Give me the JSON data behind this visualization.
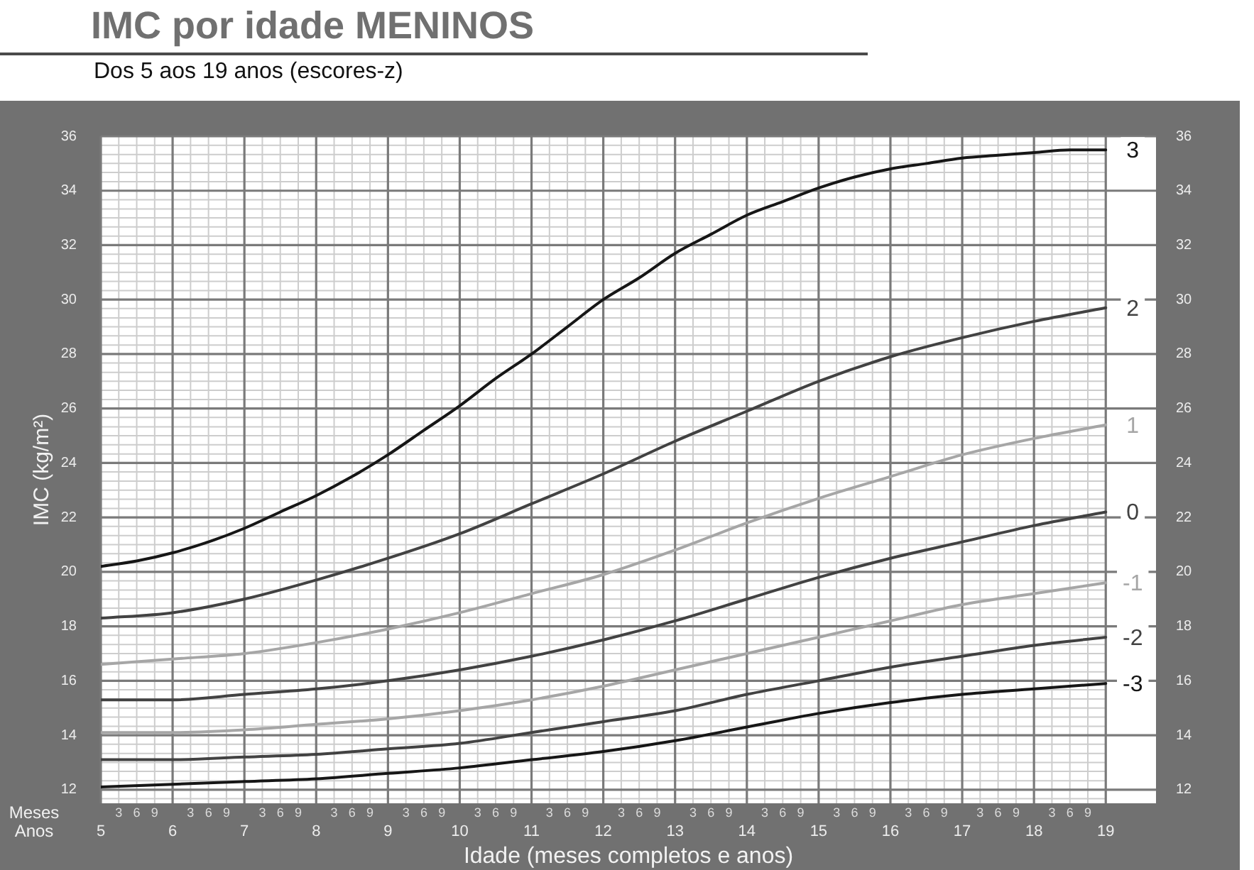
{
  "chart_data": {
    "type": "line",
    "title": "IMC por idade MENINOS",
    "subtitle": "Dos 5 aos 19 anos (escores-z)",
    "xlabel": "Idade (meses completos e anos)",
    "ylabel": "IMC (kg/m²)",
    "annotations": [
      "Meses",
      "Anos",
      "3",
      "6",
      "9",
      "3",
      "6",
      "9",
      "3",
      "6",
      "9",
      "3",
      "6",
      "9",
      "3",
      "6",
      "9",
      "3",
      "6",
      "9",
      "3",
      "6",
      "9",
      "3",
      "6",
      "9",
      "3",
      "6",
      "9",
      "3",
      "6",
      "9",
      "3",
      "6",
      "9",
      "3",
      "6",
      "9",
      "3",
      "6",
      "9",
      "3",
      "6",
      "9"
    ],
    "x": [
      5,
      6,
      7,
      8,
      9,
      10,
      11,
      12,
      13,
      14,
      15,
      16,
      17,
      18,
      19
    ],
    "series": [
      {
        "name": "3",
        "color": "#161616",
        "x": [
          5,
          5.5,
          6,
          6.5,
          7,
          7.5,
          8,
          8.5,
          9,
          9.5,
          10,
          10.5,
          11,
          11.5,
          12,
          12.5,
          13,
          13.5,
          14,
          14.5,
          15,
          15.5,
          16,
          16.5,
          17,
          17.5,
          18,
          18.5,
          19
        ],
        "values": [
          20.2,
          20.4,
          20.7,
          21.1,
          21.6,
          22.2,
          22.8,
          23.5,
          24.3,
          25.2,
          26.1,
          27.1,
          28.0,
          29.0,
          30.0,
          30.8,
          31.7,
          32.4,
          33.1,
          33.6,
          34.1,
          34.5,
          34.8,
          35.0,
          35.2,
          35.3,
          35.4,
          35.5,
          35.5
        ]
      },
      {
        "name": "2",
        "color": "#424242",
        "values": [
          18.3,
          18.5,
          19.0,
          19.7,
          20.5,
          21.4,
          22.5,
          23.6,
          24.8,
          25.9,
          27.0,
          27.9,
          28.6,
          29.2,
          29.7
        ]
      },
      {
        "name": "1",
        "color": "#a6a6a6",
        "values": [
          16.6,
          16.8,
          17.0,
          17.4,
          17.9,
          18.5,
          19.2,
          19.9,
          20.8,
          21.8,
          22.7,
          23.5,
          24.3,
          24.9,
          25.4
        ]
      },
      {
        "name": "0",
        "color": "#424242",
        "values": [
          15.3,
          15.3,
          15.5,
          15.7,
          16.0,
          16.4,
          16.9,
          17.5,
          18.2,
          19.0,
          19.8,
          20.5,
          21.1,
          21.7,
          22.2
        ]
      },
      {
        "name": "-1",
        "color": "#a6a6a6",
        "values": [
          14.1,
          14.1,
          14.2,
          14.4,
          14.6,
          14.9,
          15.3,
          15.8,
          16.4,
          17.0,
          17.6,
          18.2,
          18.8,
          19.2,
          19.6
        ]
      },
      {
        "name": "-2",
        "color": "#424242",
        "values": [
          13.1,
          13.1,
          13.2,
          13.3,
          13.5,
          13.7,
          14.1,
          14.5,
          14.9,
          15.5,
          16.0,
          16.5,
          16.9,
          17.3,
          17.6
        ]
      },
      {
        "name": "-3",
        "color": "#161616",
        "values": [
          12.1,
          12.2,
          12.3,
          12.4,
          12.6,
          12.8,
          13.1,
          13.4,
          13.8,
          14.3,
          14.8,
          15.2,
          15.5,
          15.7,
          15.9
        ]
      }
    ],
    "xlim": [
      5,
      19.7
    ],
    "xticks": [
      5,
      {
        "value": 5.25,
        "label": null
      },
      {
        "value": 5.5,
        "label": null
      },
      {
        "value": 5.75,
        "label": null
      },
      6,
      {
        "value": 6.25,
        "label": null
      },
      {
        "value": 6.5,
        "label": null
      },
      {
        "value": 6.75,
        "label": null
      },
      7,
      {
        "value": 7.25,
        "label": null
      },
      {
        "value": 7.5,
        "label": null
      },
      {
        "value": 7.75,
        "label": null
      },
      8,
      {
        "value": 8.25,
        "label": null
      },
      {
        "value": 8.5,
        "label": null
      },
      {
        "value": 8.75,
        "label": null
      },
      9,
      {
        "value": 9.25,
        "label": null
      },
      {
        "value": 9.5,
        "label": null
      },
      {
        "value": 9.75,
        "label": null
      },
      10,
      {
        "value": 10.25,
        "label": null
      },
      {
        "value": 10.5,
        "label": null
      },
      {
        "value": 10.75,
        "label": null
      },
      11,
      {
        "value": 11.25,
        "label": null
      },
      {
        "value": 11.5,
        "label": null
      },
      {
        "value": 11.75,
        "label": null
      },
      12,
      {
        "value": 12.25,
        "label": null
      },
      {
        "value": 12.5,
        "label": null
      },
      {
        "value": 12.75,
        "label": null
      },
      13,
      {
        "value": 13.25,
        "label": null
      },
      {
        "value": 13.5,
        "label": null
      },
      {
        "value": 13.75,
        "label": null
      },
      14,
      {
        "value": 14.25,
        "label": null
      },
      {
        "value": 14.5,
        "label": null
      },
      {
        "value": 14.75,
        "label": null
      },
      15,
      {
        "value": 15.25,
        "label": null
      },
      {
        "value": 15.5,
        "label": null
      },
      {
        "value": 15.75,
        "label": null
      },
      16,
      {
        "value": 16.25,
        "label": null
      },
      {
        "value": 16.5,
        "label": null
      },
      {
        "value": 16.75,
        "label": null
      },
      17,
      {
        "value": 17.25,
        "label": null
      },
      {
        "value": 17.5,
        "label": null
      },
      {
        "value": 17.75,
        "label": null
      },
      18,
      {
        "value": 18.25,
        "label": null
      },
      {
        "value": 18.5,
        "label": null
      },
      {
        "value": 18.75,
        "label": null
      },
      19
    ],
    "ylim": [
      11.5,
      36
    ],
    "yticks": [
      {
        "value": 11.67,
        "label": null
      },
      12,
      {
        "value": 12.33,
        "label": null
      },
      {
        "value": 12.67,
        "label": null
      },
      {
        "value": 13,
        "label": null
      },
      {
        "value": 13.33,
        "label": null
      },
      {
        "value": 13.67,
        "label": null
      },
      14,
      {
        "value": 14.33,
        "label": null
      },
      {
        "value": 14.67,
        "label": null
      },
      {
        "value": 15,
        "label": null
      },
      {
        "value": 15.33,
        "label": null
      },
      {
        "value": 15.67,
        "label": null
      },
      16,
      {
        "value": 16.33,
        "label": null
      },
      {
        "value": 16.67,
        "label": null
      },
      {
        "value": 17,
        "label": null
      },
      {
        "value": 17.33,
        "label": null
      },
      {
        "value": 17.67,
        "label": null
      },
      18,
      {
        "value": 18.33,
        "label": null
      },
      {
        "value": 18.67,
        "label": null
      },
      {
        "value": 19,
        "label": null
      },
      {
        "value": 19.33,
        "label": null
      },
      {
        "value": 19.67,
        "label": null
      },
      20,
      {
        "value": 20.33,
        "label": null
      },
      {
        "value": 20.67,
        "label": null
      },
      {
        "value": 21,
        "label": null
      },
      {
        "value": 21.33,
        "label": null
      },
      {
        "value": 21.67,
        "label": null
      },
      22,
      {
        "value": 22.33,
        "label": null
      },
      {
        "value": 22.67,
        "label": null
      },
      {
        "value": 23,
        "label": null
      },
      {
        "value": 23.33,
        "label": null
      },
      {
        "value": 23.67,
        "label": null
      },
      24,
      {
        "value": 24.33,
        "label": null
      },
      {
        "value": 24.67,
        "label": null
      },
      {
        "value": 25,
        "label": null
      },
      {
        "value": 25.33,
        "label": null
      },
      {
        "value": 25.67,
        "label": null
      },
      26,
      {
        "value": 26.33,
        "label": null
      },
      {
        "value": 26.67,
        "label": null
      },
      {
        "value": 27,
        "label": null
      },
      {
        "value": 27.33,
        "label": null
      },
      {
        "value": 27.67,
        "label": null
      },
      28,
      {
        "value": 28.33,
        "label": null
      },
      {
        "value": 28.67,
        "label": null
      },
      {
        "value": 29,
        "label": null
      },
      {
        "value": 29.33,
        "label": null
      },
      {
        "value": 29.67,
        "label": null
      },
      30,
      {
        "value": 30.33,
        "label": null
      },
      {
        "value": 30.67,
        "label": null
      },
      {
        "value": 31,
        "label": null
      },
      {
        "value": 31.33,
        "label": null
      },
      {
        "value": 31.67,
        "label": null
      },
      32,
      {
        "value": 32.33,
        "label": null
      },
      {
        "value": 32.67,
        "label": null
      },
      {
        "value": 33,
        "label": null
      },
      {
        "value": 33.33,
        "label": null
      },
      {
        "value": 33.67,
        "label": null
      },
      34,
      {
        "value": 34.33,
        "label": null
      },
      {
        "value": 34.67,
        "label": null
      },
      {
        "value": 35,
        "label": null
      },
      {
        "value": 35.33,
        "label": null
      },
      {
        "value": 35.67,
        "label": null
      },
      36
    ],
    "y2lim": [
      11.5,
      36
    ],
    "y2ticks": [
      12,
      14,
      16,
      18,
      20,
      22,
      24,
      26,
      28,
      30,
      32,
      34,
      36
    ],
    "grid": true,
    "marker": "none",
    "line_style": "solid"
  }
}
